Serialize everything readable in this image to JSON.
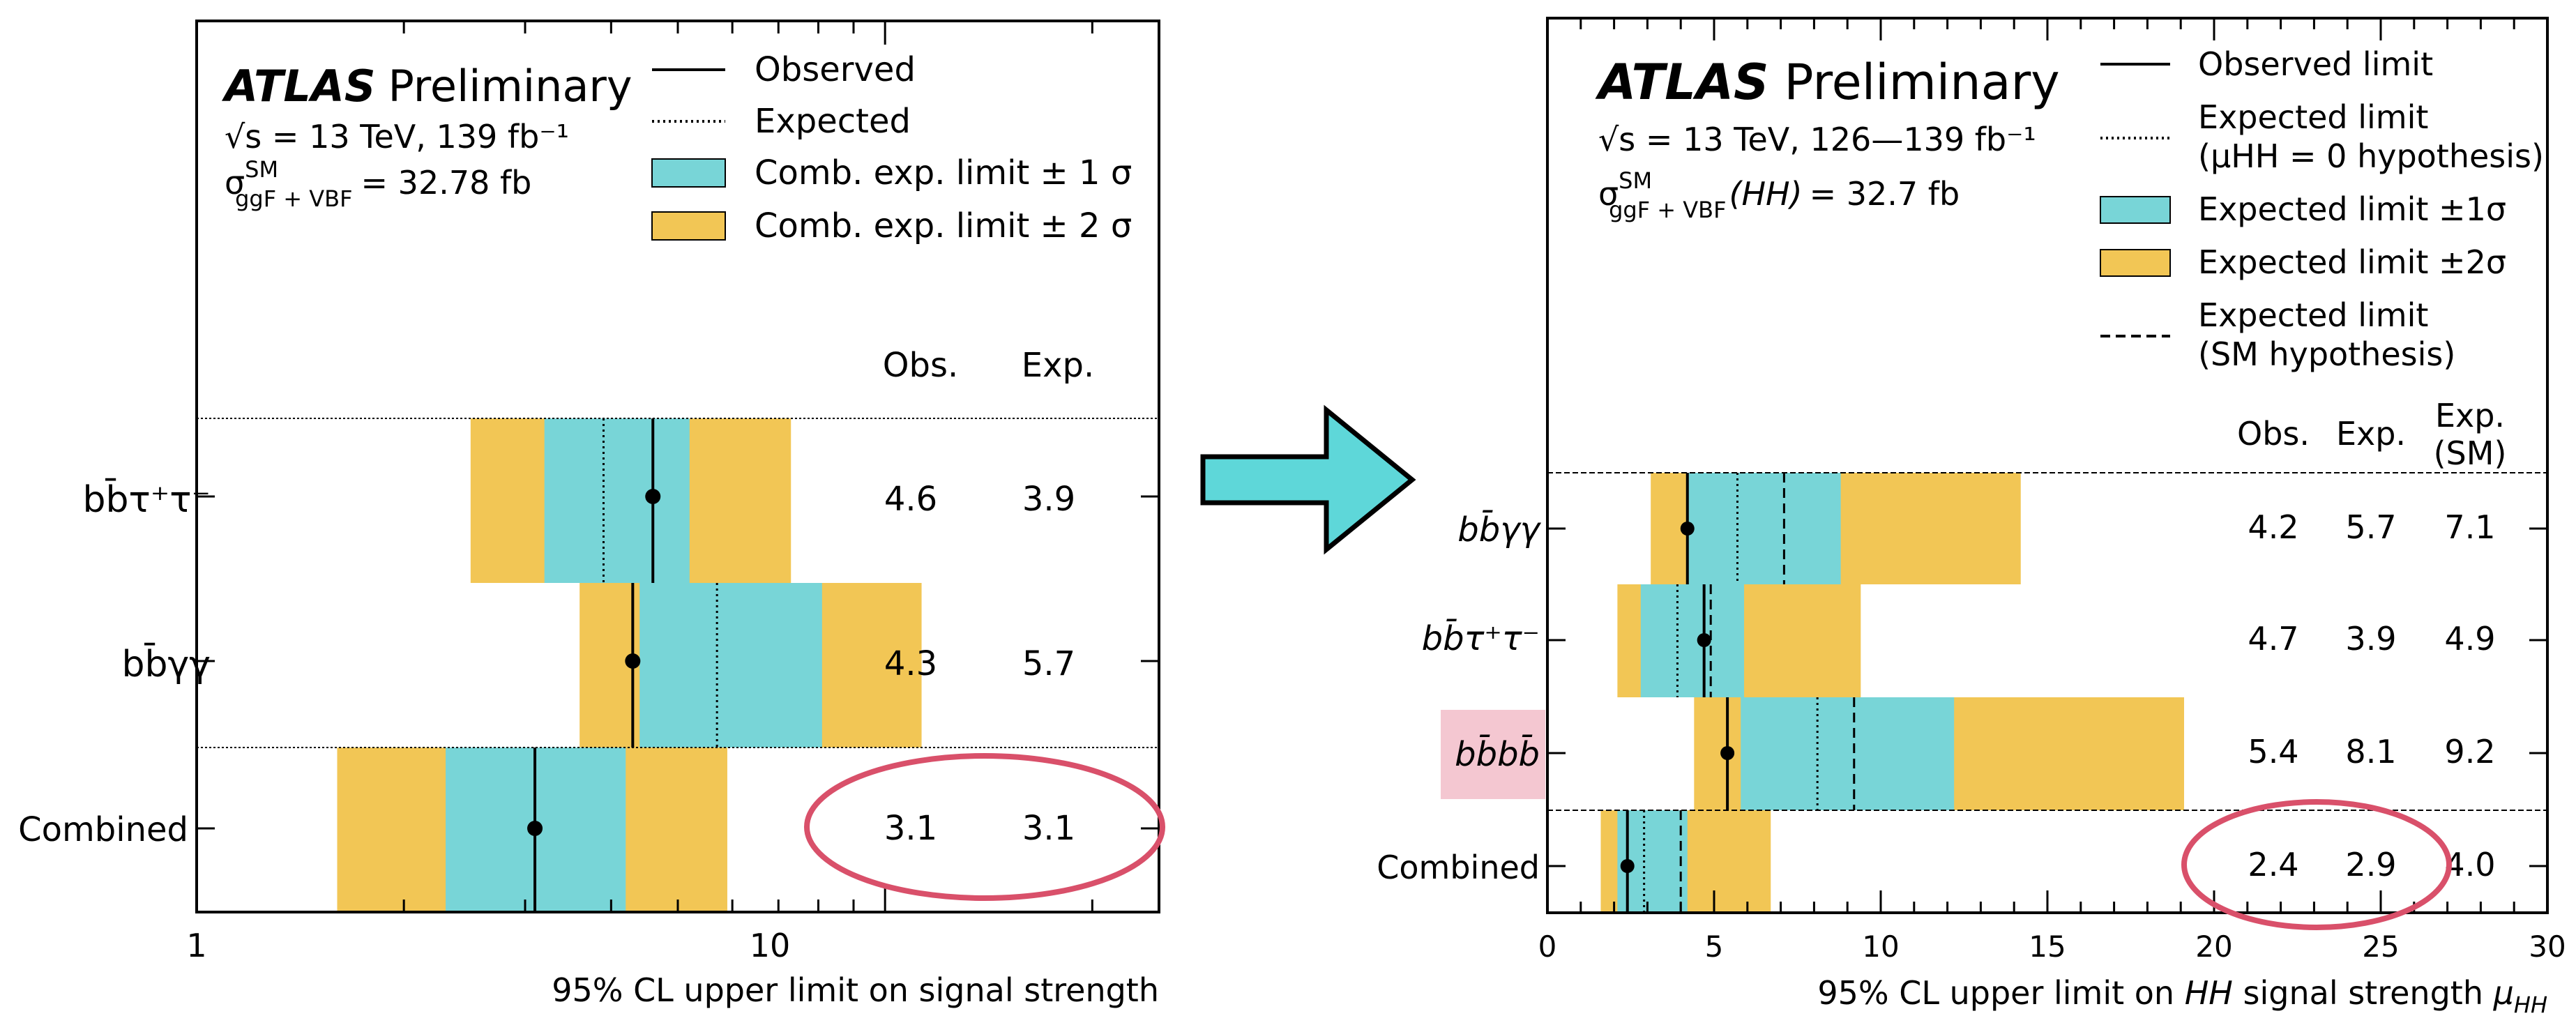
{
  "colors": {
    "one_sigma": "#78D5D7",
    "two_sigma": "#F2C655",
    "highlight_ellipse": "#D9506A",
    "highlight_box": "#F4C7D1",
    "arrow_fill": "#5ED7D9",
    "line": "#000000"
  },
  "chart_data": [
    {
      "type": "limit-plot",
      "xscale": "log",
      "xlim": [
        1,
        25
      ],
      "xticks": [
        "1",
        "10"
      ],
      "xlabel": "95% CL upper limit on signal strength",
      "experiment": "ATLAS",
      "status": "Preliminary",
      "energy_line": "√s = 13 TeV, 139 fb⁻¹",
      "xsec_sigma": "σ",
      "xsec_sup": "SM",
      "xsec_sub": "ggF + VBF",
      "xsec_rest": "= 32.78 fb",
      "legend_position": "top-right",
      "legend": [
        "Observed",
        "Expected",
        "Comb. exp. limit ± 1 σ",
        "Comb. exp. limit ± 2 σ"
      ],
      "col_headers": [
        "Obs.",
        "Exp."
      ],
      "channels": [
        {
          "label": "bb̄τ⁺τ⁻",
          "observed": 4.6,
          "expected": 3.9,
          "obs_text": "4.6",
          "exp_text": "3.9",
          "band1": [
            3.2,
            5.2
          ],
          "band2": [
            2.5,
            7.3
          ]
        },
        {
          "label": "bb̄γγ",
          "observed": 4.3,
          "expected": 5.7,
          "obs_text": "4.3",
          "exp_text": "5.7",
          "band1": [
            4.4,
            8.1
          ],
          "band2": [
            3.6,
            11.3
          ]
        },
        {
          "label": "Combined",
          "observed": 3.1,
          "expected": 3.1,
          "obs_text": "3.1",
          "exp_text": "3.1",
          "band1": [
            2.3,
            4.2
          ],
          "band2": [
            1.6,
            5.9
          ]
        }
      ]
    },
    {
      "type": "limit-plot",
      "xscale": "linear",
      "xlim": [
        0,
        30
      ],
      "xticks": [
        "0",
        "5",
        "10",
        "15",
        "20",
        "25",
        "30"
      ],
      "xlabel_pre": "95% CL upper limit on ",
      "xlabel_hh": "HH",
      "xlabel_mid": " signal strength ",
      "xlabel_mu": "μ",
      "xlabel_mu_sub": "HH",
      "experiment": "ATLAS",
      "status": "Preliminary",
      "energy_line": "√s = 13 TeV, 126—139 fb⁻¹",
      "xsec_sigma": "σ",
      "xsec_sup": "SM",
      "xsec_sub": "ggF + VBF",
      "xsec_hh": "(HH)",
      "xsec_rest": "= 32.7 fb",
      "legend_position": "top-right",
      "legend": [
        "Observed limit",
        "Expected limit",
        "(μHH = 0 hypothesis)",
        "Expected limit ±1σ",
        "Expected limit ±2σ",
        "Expected limit",
        "(SM hypothesis)"
      ],
      "col_headers": [
        "Obs.",
        "Exp.",
        "Exp.",
        "(SM)"
      ],
      "channels": [
        {
          "label": "bb̄γγ",
          "observed": 4.2,
          "expected": 5.7,
          "expected_sm": 7.1,
          "obs_text": "4.2",
          "exp_text": "5.7",
          "sm_text": "7.1",
          "band1": [
            4.2,
            8.8
          ],
          "band2": [
            3.1,
            14.2
          ]
        },
        {
          "label": "bb̄τ⁺τ⁻",
          "observed": 4.7,
          "expected": 3.9,
          "expected_sm": 4.9,
          "obs_text": "4.7",
          "exp_text": "3.9",
          "sm_text": "4.9",
          "band1": [
            2.8,
            5.9
          ],
          "band2": [
            2.1,
            9.4
          ]
        },
        {
          "label": "bb̄bb̄",
          "observed": 5.4,
          "expected": 8.1,
          "expected_sm": 9.2,
          "obs_text": "5.4",
          "exp_text": "8.1",
          "sm_text": "9.2",
          "band1": [
            5.8,
            12.2
          ],
          "band2": [
            4.4,
            19.1
          ]
        },
        {
          "label": "Combined",
          "observed": 2.4,
          "expected": 2.9,
          "expected_sm": 4.0,
          "obs_text": "2.4",
          "exp_text": "2.9",
          "sm_text": "4.0",
          "band1": [
            2.1,
            4.2
          ],
          "band2": [
            1.6,
            6.7
          ]
        }
      ]
    }
  ]
}
